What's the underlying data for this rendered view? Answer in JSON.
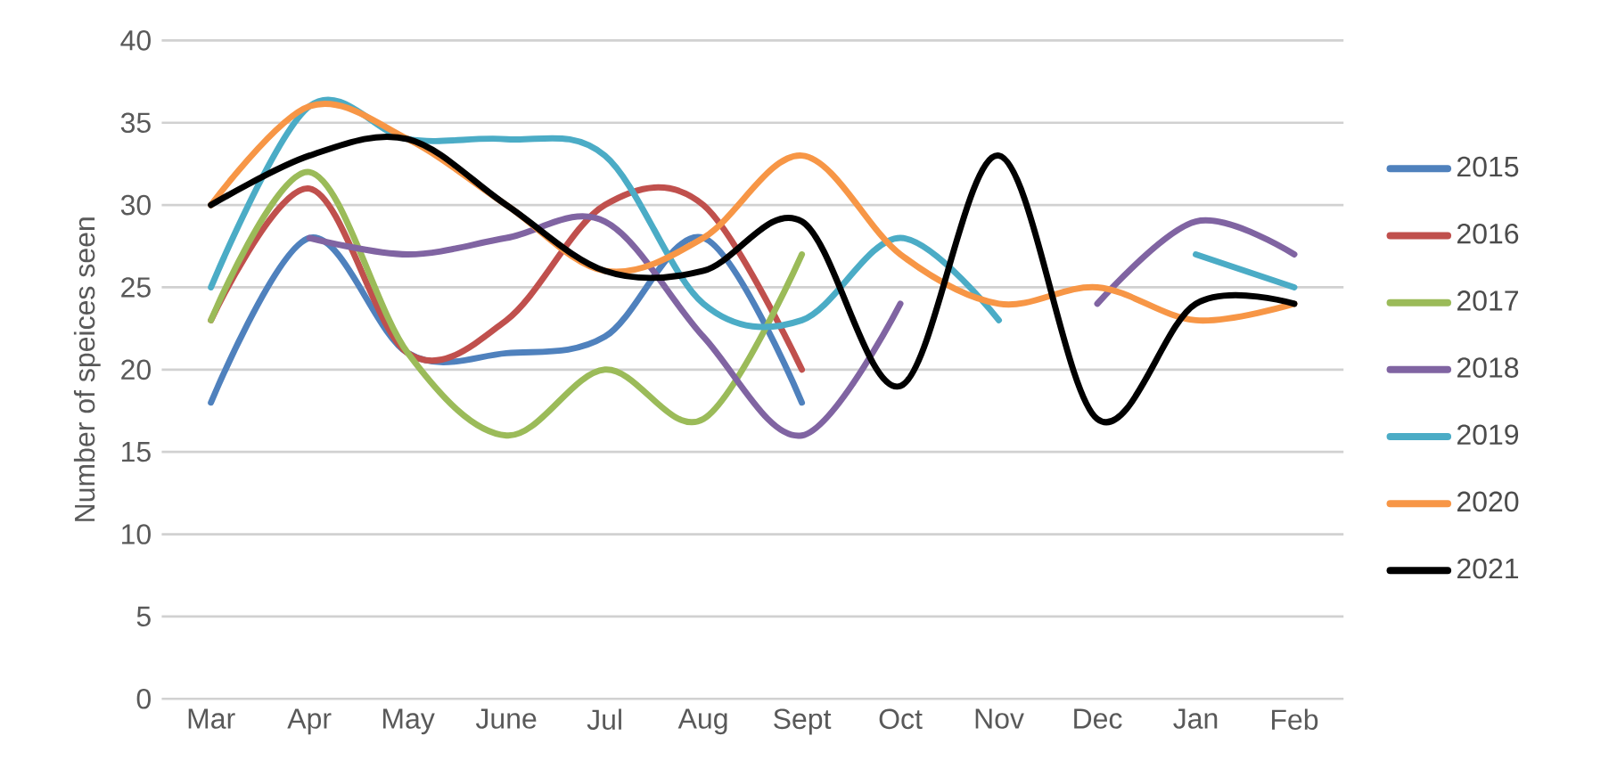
{
  "chart_data": {
    "type": "line",
    "ylabel": "Number of speices seen",
    "categories": [
      "Mar",
      "Apr",
      "May",
      "June",
      "Jul",
      "Aug",
      "Sept",
      "Oct",
      "Nov",
      "Dec",
      "Jan",
      "Feb"
    ],
    "series": [
      {
        "name": "2015",
        "color": "#4f81bd",
        "values": [
          18,
          28,
          21,
          21,
          22,
          28,
          18,
          null,
          null,
          null,
          null,
          null
        ]
      },
      {
        "name": "2016",
        "color": "#c0504d",
        "values": [
          23,
          31,
          21,
          23,
          30,
          30,
          20,
          null,
          null,
          null,
          null,
          null
        ]
      },
      {
        "name": "2017",
        "color": "#9bbb59",
        "values": [
          23,
          32,
          21,
          16,
          20,
          17,
          27,
          null,
          null,
          null,
          null,
          null
        ]
      },
      {
        "name": "2018",
        "color": "#8064a2",
        "values": [
          null,
          28,
          27,
          28,
          29,
          22,
          16,
          24,
          null,
          24,
          29,
          27
        ]
      },
      {
        "name": "2019",
        "color": "#4bacc6",
        "values": [
          25,
          36,
          34,
          34,
          33,
          24,
          23,
          28,
          23,
          null,
          27,
          25
        ]
      },
      {
        "name": "2020",
        "color": "#f79646",
        "values": [
          30,
          36,
          34,
          30,
          26,
          28,
          33,
          27,
          24,
          25,
          23,
          24
        ]
      },
      {
        "name": "2021",
        "color": "#000000",
        "values": [
          30,
          33,
          34,
          30,
          26,
          26,
          29,
          19,
          33,
          17,
          24,
          24
        ]
      }
    ],
    "ylim": [
      0,
      40
    ],
    "yticks": [
      0,
      5,
      10,
      15,
      20,
      25,
      30,
      35,
      40
    ],
    "grid": "y",
    "legend": "right",
    "marker": "none",
    "line_style": "solid"
  }
}
